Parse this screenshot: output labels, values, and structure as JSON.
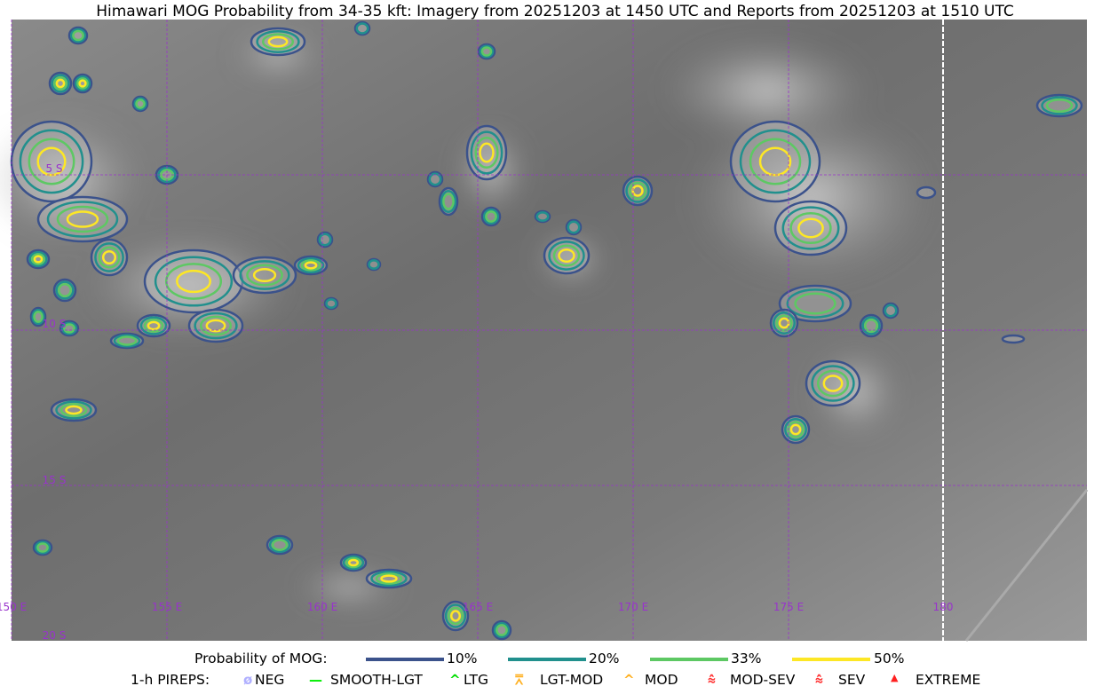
{
  "title": "Himawari MOG Probability from 34-35 kft: Imagery from 20251203 at 1450 UTC and Reports from 20251203 at 1510 UTC",
  "map": {
    "lat_range": [
      "0",
      "20 S"
    ],
    "lon_range": [
      "150 E",
      "185 E"
    ],
    "lon_labels": [
      "150 E",
      "155 E",
      "160 E",
      "165 E",
      "170 E",
      "175 E",
      "180"
    ],
    "lat_labels": [
      "5 S",
      "10 S",
      "15 S",
      "20 S"
    ],
    "gridline_color": "#9933cc",
    "coastline_color": "#9933cc"
  },
  "legend": {
    "probability_label": "Probability of MOG:",
    "probability_levels": [
      {
        "label": "10%",
        "color": "#3b528b"
      },
      {
        "label": "20%",
        "color": "#21908d"
      },
      {
        "label": "33%",
        "color": "#5dc863"
      },
      {
        "label": "50%",
        "color": "#fde725"
      }
    ],
    "pireps_label": "1-h PIREPS:",
    "pireps": [
      {
        "label": "NEG",
        "icon": "neg-circle-icon",
        "color": "#b0b0ff"
      },
      {
        "label": "SMOOTH-LGT",
        "icon": "line-icon",
        "color": "#00ee00"
      },
      {
        "label": "LTG",
        "icon": "caret-icon",
        "color": "#00dd00"
      },
      {
        "label": "LGT-MOD",
        "icon": "caret-bar-icon",
        "color": "#ffb020"
      },
      {
        "label": "MOD",
        "icon": "caret-icon",
        "color": "#ffb020"
      },
      {
        "label": "MOD-SEV",
        "icon": "double-caret-bar-icon",
        "color": "#ff3030"
      },
      {
        "label": "SEV",
        "icon": "double-caret-icon",
        "color": "#ff3030"
      },
      {
        "label": "EXTREME",
        "icon": "filled-triangle-icon",
        "color": "#ff2020"
      }
    ]
  }
}
